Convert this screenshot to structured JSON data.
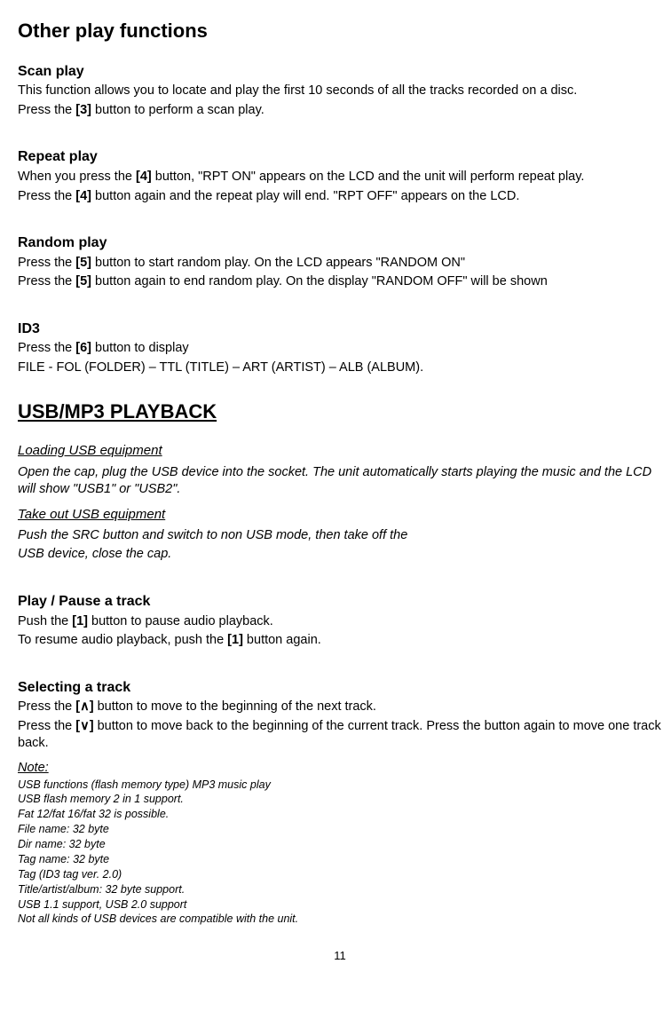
{
  "title": "Other play functions",
  "scan": {
    "heading": "Scan play",
    "p1": "This function allows you to locate and play the first 10 seconds of all the tracks recorded on a disc.",
    "p2a": "Press the ",
    "p2b": "[3]",
    "p2c": " button to perform a scan play."
  },
  "repeat": {
    "heading": "Repeat play",
    "p1a": "When you press the ",
    "p1b": "[4]",
    "p1c": " button, \"RPT ON\" appears on the LCD and the unit will perform repeat play.",
    "p2a": "Press the ",
    "p2b": "[4]",
    "p2c": " button again and the repeat play will end. \"RPT OFF\" appears on the LCD."
  },
  "random": {
    "heading": "Random play",
    "p1a": "Press the ",
    "p1b": "[5]",
    "p1c": " button to start random play. On the LCD appears \"RANDOM ON\"",
    "p2a": "Press the ",
    "p2b": "[5]",
    "p2c": " button again to end random play. On the display \"RANDOM OFF\" will be shown"
  },
  "id3": {
    "heading": "ID3",
    "p1a": "Press the ",
    "p1b": "[6]",
    "p1c": " button to display",
    "p2": "FILE - FOL (FOLDER) – TTL (TITLE) – ART (ARTIST) – ALB (ALBUM)."
  },
  "usb": {
    "major": "USB/MP3 PLAYBACK",
    "load_h": "Loading USB equipment",
    "load_p": "Open the cap, plug the USB device into the socket. The unit automatically starts playing the music and the LCD will show \"USB1\" or \"USB2\".",
    "take_h": "Take out USB equipment",
    "take_p1": "Push the SRC button and switch to non USB mode, then take off the",
    "take_p2": "USB device, close the cap."
  },
  "play": {
    "heading": "Play / Pause a track",
    "p1a": "Push the ",
    "p1b": "[1]",
    "p1c": " button to pause audio playback.",
    "p2a": "To resume audio playback, push the ",
    "p2b": "[1]",
    "p2c": " button again."
  },
  "select": {
    "heading": "Selecting a track",
    "p1a": "Press the ",
    "p1b": "[∧]",
    "p1c": " button to move to the beginning of the next track.",
    "p2a": "Press the ",
    "p2b": "[∨]",
    "p2c": " button to move back to the beginning of the current track. Press the button again to move one track back."
  },
  "note": {
    "label": "Note:",
    "l1": "USB functions (flash memory type) MP3 music play",
    "l2": "USB flash memory 2 in 1 support.",
    "l3": "Fat 12/fat 16/fat 32 is possible.",
    "l4": "File name: 32 byte",
    "l5": "Dir name: 32 byte",
    "l6": "Tag name: 32 byte",
    "l7": "Tag (ID3 tag ver. 2.0)",
    "l8": "Title/artist/album: 32 byte support.",
    "l9": "USB 1.1 support, USB 2.0 support",
    "l10": "Not all kinds of USB devices are compatible with the unit."
  },
  "pagenum": "11"
}
